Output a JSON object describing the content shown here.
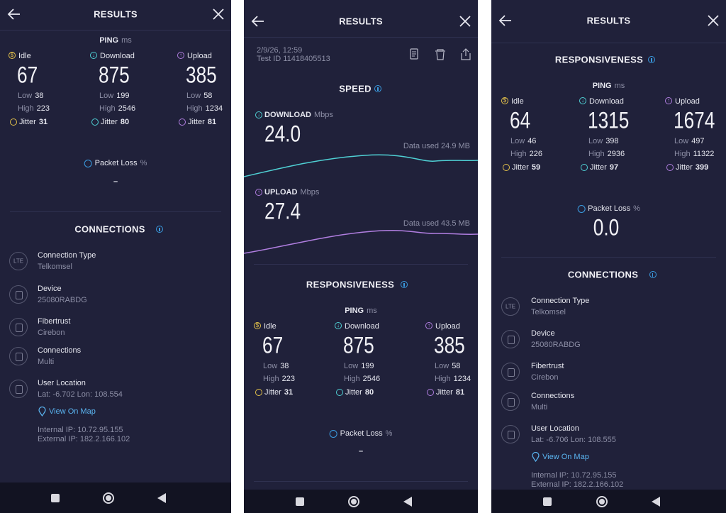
{
  "panels": [
    {
      "header": {
        "title": "RESULTS"
      },
      "ping": {
        "label": "PING",
        "unit": "ms",
        "columns": [
          {
            "name": "Idle",
            "value": "67",
            "low_label": "Low",
            "low": "38",
            "high_label": "High",
            "high": "223",
            "jitter_label": "Jitter",
            "jitter": "31"
          },
          {
            "name": "Download",
            "value": "875",
            "low_label": "Low",
            "low": "199",
            "high_label": "High",
            "high": "2546",
            "jitter_label": "Jitter",
            "jitter": "80"
          },
          {
            "name": "Upload",
            "value": "385",
            "low_label": "Low",
            "low": "58",
            "high_label": "High",
            "high": "1234",
            "jitter_label": "Jitter",
            "jitter": "81"
          }
        ]
      },
      "packet_loss": {
        "label": "Packet Loss",
        "unit": "%",
        "value": "–"
      },
      "connections": {
        "title": "CONNECTIONS",
        "items": [
          {
            "icon_text": "LTE",
            "label": "Connection Type",
            "value": "Telkomsel"
          },
          {
            "label": "Device",
            "value": "25080RABDG"
          },
          {
            "label": "Fibertrust",
            "value": "Cirebon"
          },
          {
            "label": "Connections",
            "value": "Multi"
          },
          {
            "label": "User Location",
            "value": "Lat: -6.702 Lon: 108.554"
          }
        ],
        "map_link": "View On Map",
        "internal_ip": "Internal IP: 10.72.95.155",
        "external_ip": "External IP: 182.2.166.102"
      }
    },
    {
      "header": {
        "title": "RESULTS"
      },
      "test": {
        "date": "2/9/26, 12:59",
        "id": "Test ID 11418405513"
      },
      "speed": {
        "title": "SPEED",
        "download": {
          "label": "DOWNLOAD",
          "unit": "Mbps",
          "value": "24.0",
          "data_used": "Data used 24.9 MB"
        },
        "upload": {
          "label": "UPLOAD",
          "unit": "Mbps",
          "value": "27.4",
          "data_used": "Data used 43.5 MB"
        }
      },
      "responsiveness": {
        "title": "RESPONSIVENESS"
      },
      "ping": {
        "label": "PING",
        "unit": "ms",
        "columns": [
          {
            "name": "Idle",
            "value": "67",
            "low_label": "Low",
            "low": "38",
            "high_label": "High",
            "high": "223",
            "jitter_label": "Jitter",
            "jitter": "31"
          },
          {
            "name": "Download",
            "value": "875",
            "low_label": "Low",
            "low": "199",
            "high_label": "High",
            "high": "2546",
            "jitter_label": "Jitter",
            "jitter": "80"
          },
          {
            "name": "Upload",
            "value": "385",
            "low_label": "Low",
            "low": "58",
            "high_label": "High",
            "high": "1234",
            "jitter_label": "Jitter",
            "jitter": "81"
          }
        ]
      },
      "packet_loss": {
        "label": "Packet Loss",
        "unit": "%",
        "value": "–"
      }
    },
    {
      "header": {
        "title": "RESULTS"
      },
      "responsiveness": {
        "title": "RESPONSIVENESS"
      },
      "ping": {
        "label": "PING",
        "unit": "ms",
        "columns": [
          {
            "name": "Idle",
            "value": "64",
            "low_label": "Low",
            "low": "46",
            "high_label": "High",
            "high": "226",
            "jitter_label": "Jitter",
            "jitter": "59"
          },
          {
            "name": "Download",
            "value": "1315",
            "low_label": "Low",
            "low": "398",
            "high_label": "High",
            "high": "2936",
            "jitter_label": "Jitter",
            "jitter": "97"
          },
          {
            "name": "Upload",
            "value": "1674",
            "low_label": "Low",
            "low": "497",
            "high_label": "High",
            "high": "11322",
            "jitter_label": "Jitter",
            "jitter": "399"
          }
        ]
      },
      "packet_loss": {
        "label": "Packet Loss",
        "unit": "%",
        "value": "0.0"
      },
      "connections": {
        "title": "CONNECTIONS",
        "items": [
          {
            "icon_text": "LTE",
            "label": "Connection Type",
            "value": "Telkomsel"
          },
          {
            "label": "Device",
            "value": "25080RABDG"
          },
          {
            "label": "Fibertrust",
            "value": "Cirebon"
          },
          {
            "label": "Connections",
            "value": "Multi"
          },
          {
            "label": "User Location",
            "value": "Lat: -6.706 Lon: 108.555"
          }
        ],
        "map_link": "View On Map",
        "internal_ip": "Internal IP: 10.72.95.155",
        "external_ip": "External IP: 182.2.166.102"
      }
    }
  ]
}
